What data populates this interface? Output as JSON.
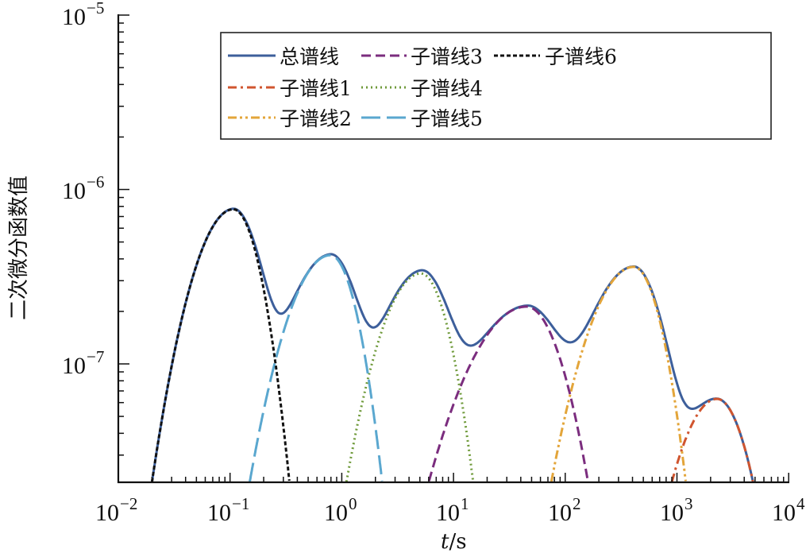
{
  "chart_data": {
    "type": "line",
    "title": "",
    "xlabel": "t/s",
    "xlabel_italic_part": "t",
    "xlabel_unit_part": "/s",
    "ylabel": "二次微分函数值",
    "xscale": "log",
    "yscale": "log",
    "xlim": [
      0.01,
      10000
    ],
    "ylim": [
      2.1e-08,
      1e-05
    ],
    "grid": false,
    "legend_position": "upper right (inside), 3 columns",
    "x_ticks": [
      {
        "base": "10",
        "exp": "−2",
        "value": 0.01
      },
      {
        "base": "10",
        "exp": "−1",
        "value": 0.1
      },
      {
        "base": "10",
        "exp": "0",
        "value": 1
      },
      {
        "base": "10",
        "exp": "1",
        "value": 10
      },
      {
        "base": "10",
        "exp": "2",
        "value": 100
      },
      {
        "base": "10",
        "exp": "3",
        "value": 1000
      },
      {
        "base": "10",
        "exp": "4",
        "value": 10000
      }
    ],
    "y_ticks": [
      {
        "base": "10",
        "exp": "−7",
        "value": 1e-07
      },
      {
        "base": "10",
        "exp": "−6",
        "value": 1e-06
      },
      {
        "base": "10",
        "exp": "−5",
        "value": 1e-05
      }
    ],
    "series": [
      {
        "name": "总谱线",
        "color": "#3d5f9b",
        "dash": "solid",
        "description": "total spectrum = sum of sub-spectra",
        "x": [
          0.02,
          0.107,
          0.31,
          0.79,
          2.0,
          5.1,
          14,
          45,
          114,
          410,
          1370,
          2280,
          4800
        ],
        "values": [
          3.4e-08,
          7.7e-07,
          2e-07,
          4.2e-07,
          1.6e-07,
          3.3e-07,
          1.07e-07,
          2.15e-07,
          1.03e-07,
          3.6e-07,
          5.2e-08,
          6.3e-08,
          2.1e-08
        ]
      },
      {
        "name": "子谱线1",
        "color": "#d0552f",
        "dash": "dash-dot",
        "peak_t": 2280,
        "peak_value": 6.3e-08,
        "x_range": [
          900,
          4800
        ]
      },
      {
        "name": "子谱线2",
        "color": "#e3a53a",
        "dash": "dash-dot-dot",
        "peak_t": 410,
        "peak_value": 3.6e-07,
        "x_range": [
          75,
          1200
        ]
      },
      {
        "name": "子谱线3",
        "color": "#7b2d7e",
        "dash": "dashed",
        "peak_t": 45,
        "peak_value": 2.13e-07,
        "x_range": [
          6,
          160
        ]
      },
      {
        "name": "子谱线4",
        "color": "#6f9a3a",
        "dash": "dotted",
        "peak_t": 5.1,
        "peak_value": 3.3e-07,
        "x_range": [
          1.1,
          15
        ]
      },
      {
        "name": "子谱线5",
        "color": "#5aa7cf",
        "dash": "long-dash",
        "peak_t": 0.79,
        "peak_value": 4.2e-07,
        "x_range": [
          0.15,
          2.3
        ]
      },
      {
        "name": "子谱线6",
        "color": "#111111",
        "dash": "short-dash",
        "peak_t": 0.107,
        "peak_value": 7.7e-07,
        "x_range": [
          0.02,
          0.34
        ]
      }
    ]
  },
  "legend": {
    "items": [
      {
        "label": "总谱线"
      },
      {
        "label": "子谱线1"
      },
      {
        "label": "子谱线2"
      },
      {
        "label": "子谱线3"
      },
      {
        "label": "子谱线4"
      },
      {
        "label": "子谱线5"
      },
      {
        "label": "子谱线6"
      }
    ]
  }
}
